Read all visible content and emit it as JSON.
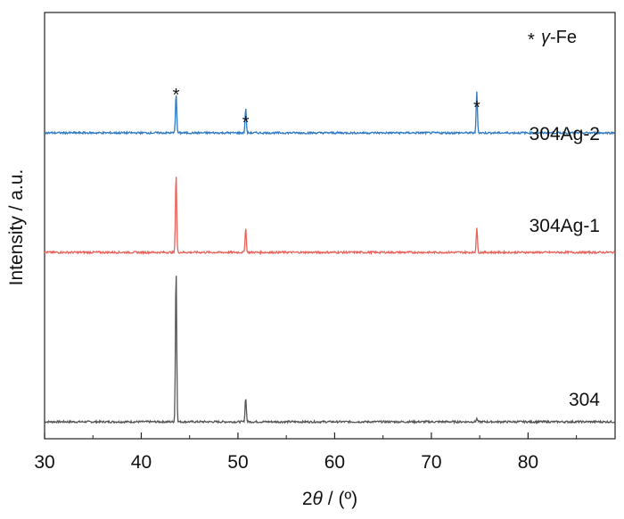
{
  "chart_data": {
    "type": "line",
    "title": "",
    "xlabel_prefix": "2",
    "xlabel_theta": "θ",
    "xlabel_suffix": " / (º)",
    "ylabel": "Intensity / a.u.",
    "xlim": [
      30,
      89
    ],
    "xticks": [
      30,
      40,
      50,
      60,
      70,
      80
    ],
    "xtick_labels": [
      "30",
      "40",
      "50",
      "60",
      "70",
      "80"
    ],
    "legend": {
      "marker": "*",
      "gamma": "γ",
      "label": "-Fe",
      "placement": "top-right"
    },
    "peak_marker": "*",
    "peak_marker_positions": [
      43.6,
      50.8,
      74.7
    ],
    "series": [
      {
        "name": "304",
        "color": "#555555",
        "offset": 0,
        "peaks": [
          {
            "x": 43.6,
            "height": 100
          },
          {
            "x": 50.8,
            "height": 16
          },
          {
            "x": 74.7,
            "height": 2
          }
        ]
      },
      {
        "name": "304Ag-1",
        "color": "#e8615a",
        "offset": 1,
        "peaks": [
          {
            "x": 43.6,
            "height": 52
          },
          {
            "x": 50.8,
            "height": 16
          },
          {
            "x": 74.7,
            "height": 16
          }
        ]
      },
      {
        "name": "304Ag-2",
        "color": "#2f7ac2",
        "offset": 2,
        "peaks": [
          {
            "x": 43.6,
            "height": 26
          },
          {
            "x": 50.8,
            "height": 16
          },
          {
            "x": 74.7,
            "height": 27
          }
        ]
      }
    ]
  }
}
